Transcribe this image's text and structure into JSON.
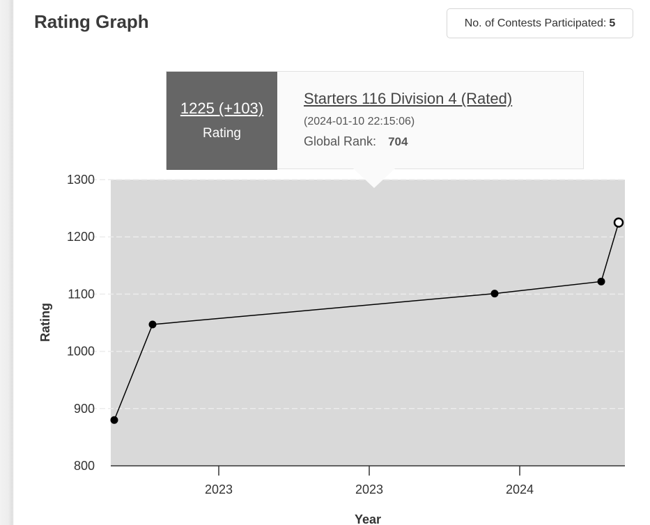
{
  "header": {
    "title": "Rating Graph",
    "contests_label": "No. of Contests Participated:",
    "contests_count": "5"
  },
  "tooltip": {
    "rating": "1225 (+103)",
    "rating_label": "Rating",
    "contest_name": "Starters 116 Division 4 (Rated)",
    "date": "(2024-01-10 22:15:06)",
    "rank_label": "Global Rank:",
    "rank_value": "704"
  },
  "colors": {
    "plot_background": "#d9d9d9",
    "line": "#000000",
    "tooltip_dark": "#666666",
    "tooltip_light": "#fafafa"
  },
  "chart_data": {
    "type": "line",
    "xlabel": "Year",
    "ylabel": "Rating",
    "ylim": [
      800,
      1300
    ],
    "y_ticks": [
      800,
      900,
      1000,
      1100,
      1200,
      1300
    ],
    "x_tick_labels": [
      "2023",
      "2023",
      "2024"
    ],
    "grid": true,
    "series": [
      {
        "values": [
          880,
          1047,
          1101,
          1122,
          1225
        ],
        "highlighted_index": 4
      }
    ]
  }
}
